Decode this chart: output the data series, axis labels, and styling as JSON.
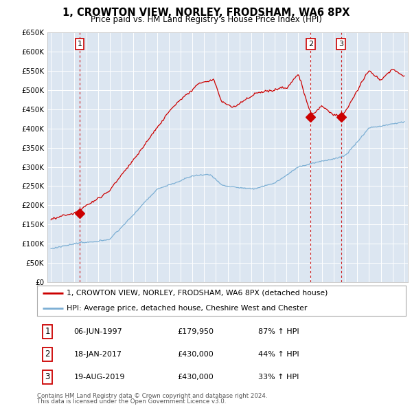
{
  "title": "1, CROWTON VIEW, NORLEY, FRODSHAM, WA6 8PX",
  "subtitle": "Price paid vs. HM Land Registry's House Price Index (HPI)",
  "fig_bg_color": "#ffffff",
  "plot_bg_color": "#dce6f1",
  "red_line_color": "#cc0000",
  "blue_line_color": "#7cafd4",
  "sale_marker_color": "#cc0000",
  "ylim": [
    0,
    650000
  ],
  "yticks": [
    0,
    50000,
    100000,
    150000,
    200000,
    250000,
    300000,
    350000,
    400000,
    450000,
    500000,
    550000,
    600000,
    650000
  ],
  "ytick_labels": [
    "£0",
    "£50K",
    "£100K",
    "£150K",
    "£200K",
    "£250K",
    "£300K",
    "£350K",
    "£400K",
    "£450K",
    "£500K",
    "£550K",
    "£600K",
    "£650K"
  ],
  "xlim_start": 1994.7,
  "xlim_end": 2025.3,
  "sales": [
    {
      "num": 1,
      "year": 1997.44,
      "price": 179950,
      "date_str": "06-JUN-1997",
      "price_str": "£179,950",
      "hpi_str": "87% ↑ HPI"
    },
    {
      "num": 2,
      "year": 2017.05,
      "price": 430000,
      "date_str": "18-JAN-2017",
      "price_str": "£430,000",
      "hpi_str": "44% ↑ HPI"
    },
    {
      "num": 3,
      "year": 2019.63,
      "price": 430000,
      "date_str": "19-AUG-2019",
      "price_str": "£430,000",
      "hpi_str": "33% ↑ HPI"
    }
  ],
  "legend_line1": "1, CROWTON VIEW, NORLEY, FRODSHAM, WA6 8PX (detached house)",
  "legend_line2": "HPI: Average price, detached house, Cheshire West and Chester",
  "footer1": "Contains HM Land Registry data © Crown copyright and database right 2024.",
  "footer2": "This data is licensed under the Open Government Licence v3.0."
}
